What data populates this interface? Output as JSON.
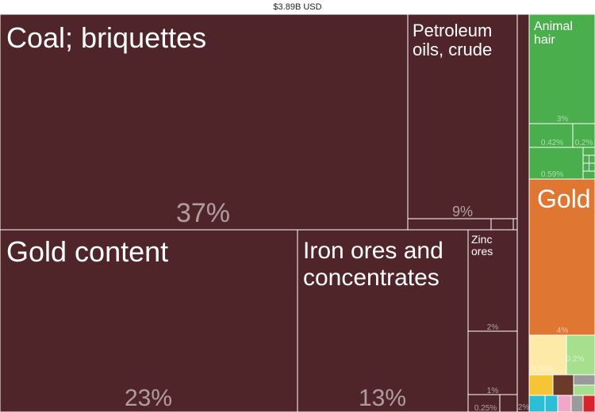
{
  "title": "$3.89B USD",
  "colors": {
    "minerals": "#50252a",
    "animal": "#49ae4b",
    "metals": "#df7632",
    "vegetable": "#fde9a8",
    "misc_green": "#a6e08f",
    "misc_brown": "#6b3a2a",
    "misc_cyan": "#2bbfd6",
    "misc_yellow": "#f6c536",
    "misc_pink": "#f1a7c8",
    "misc_gray": "#9a9a9a",
    "misc_red": "#d9232a",
    "border": "#ffffff"
  },
  "chart_data": {
    "type": "treemap",
    "total_label": "$3.89B USD",
    "items": [
      {
        "name": "Coal; briquettes",
        "share_label": "37%",
        "group": "minerals"
      },
      {
        "name": "Gold content",
        "share_label": "23%",
        "group": "minerals"
      },
      {
        "name": "Iron ores and concentrates",
        "share_label": "13%",
        "group": "minerals"
      },
      {
        "name": "Petroleum oils, crude",
        "share_label": "9%",
        "group": "minerals"
      },
      {
        "name": "Zinc ores",
        "share_label": "2%",
        "group": "minerals"
      },
      {
        "name": "",
        "share_label": "1%",
        "group": "minerals"
      },
      {
        "name": "",
        "share_label": "0.25%",
        "group": "minerals"
      },
      {
        "name": "",
        "share_label": "2%",
        "group": "minerals"
      },
      {
        "name": "Animal hair",
        "share_label": "3%",
        "group": "animal"
      },
      {
        "name": "",
        "share_label": "0.42%",
        "group": "animal"
      },
      {
        "name": "",
        "share_label": "0.2%",
        "group": "animal"
      },
      {
        "name": "",
        "share_label": "0.59%",
        "group": "animal"
      },
      {
        "name": "Gold",
        "share_label": "4%",
        "group": "metals"
      },
      {
        "name": "",
        "share_label": "0.39%",
        "group": "vegetable"
      },
      {
        "name": "",
        "share_label": "0.2%",
        "group": "misc_green"
      }
    ]
  }
}
